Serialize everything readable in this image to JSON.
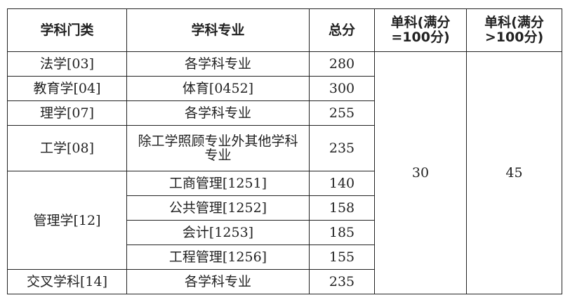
{
  "headers": [
    "学科门类",
    "学科专业",
    "总分",
    "单科(满分=100分)",
    "单科(满分>100分)"
  ],
  "rows": [
    {
      "category": "法学[03]",
      "major": "各学科专业",
      "total": "280"
    },
    {
      "category": "教育学[04]",
      "major": "体育[0452]",
      "total": "300"
    },
    {
      "category": "理学[07]",
      "major": "各学科专业",
      "total": "255"
    },
    {
      "category": "工学[08]",
      "major": "除工学照顾专业外其他学科专业",
      "total": "235"
    },
    {
      "category": "管理学[12]",
      "major": "工商管理[1251]",
      "total": "140"
    },
    {
      "category": "",
      "major": "公共管理[1252]",
      "total": "158"
    },
    {
      "category": "",
      "major": "会计[1253]",
      "total": "185"
    },
    {
      "category": "",
      "major": "工程管理[1256]",
      "total": "155"
    },
    {
      "category": "交叉学科[14]",
      "major": "各学科专业",
      "total": "235"
    }
  ],
  "single_subject_100": "30",
  "single_subject_over_100": "45"
}
